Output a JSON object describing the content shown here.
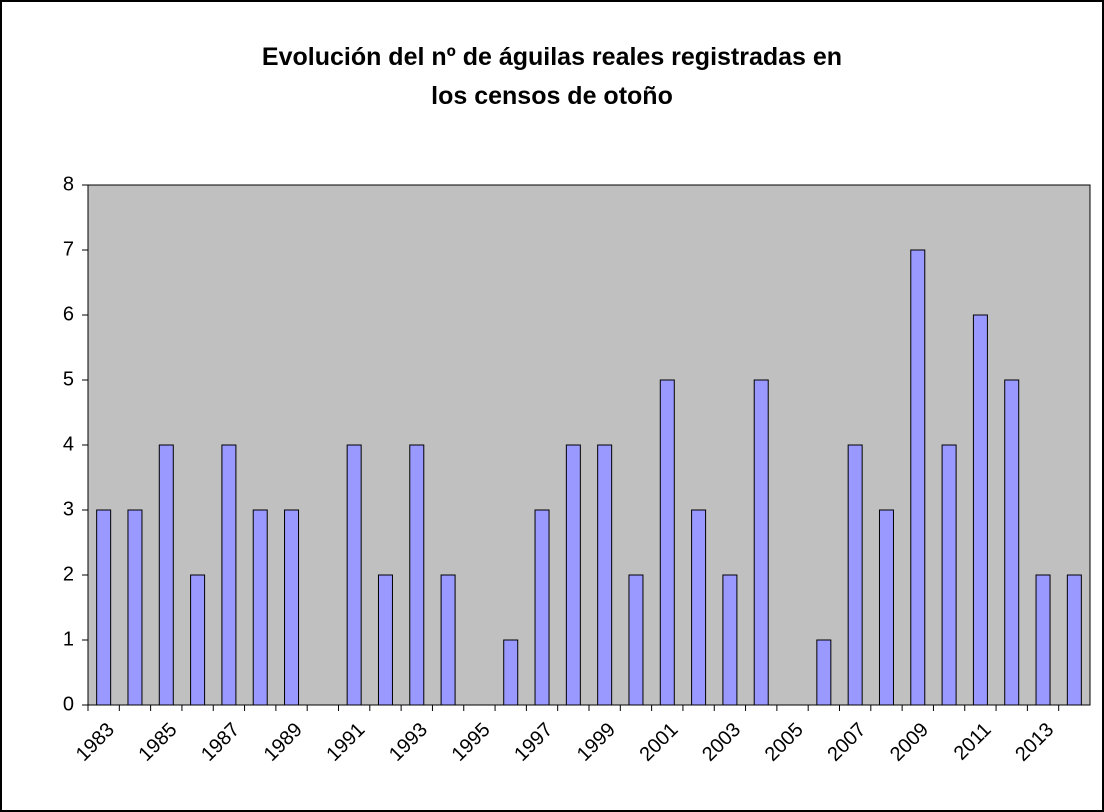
{
  "chart_data": {
    "type": "bar",
    "title": "Evolución del nº de águilas reales registradas en los censos de otoño",
    "categories": [
      "1983",
      null,
      "1985",
      null,
      "1987",
      null,
      "1989",
      null,
      "1991",
      null,
      "1993",
      null,
      "1995",
      null,
      "1997",
      null,
      "1999",
      null,
      "2001",
      null,
      "2003",
      null,
      "2005",
      null,
      "2007",
      null,
      "2009",
      null,
      "2011",
      null,
      "2013",
      null
    ],
    "values": [
      3,
      3,
      4,
      2,
      4,
      3,
      3,
      0,
      4,
      2,
      4,
      2,
      0,
      1,
      3,
      4,
      4,
      2,
      5,
      3,
      2,
      5,
      0,
      1,
      4,
      3,
      7,
      4,
      6,
      5,
      2,
      2
    ],
    "color": "#9999ff",
    "plot_background": "#c0c0c0",
    "ylim": [
      0,
      8
    ],
    "yticks": [
      0,
      1,
      2,
      3,
      4,
      5,
      6,
      7,
      8
    ],
    "grid": false
  }
}
